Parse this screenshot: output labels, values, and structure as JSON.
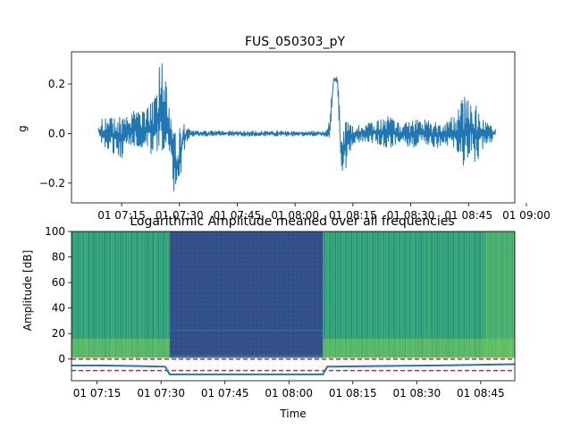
{
  "chart_data": [
    {
      "type": "line",
      "title": "FUS_050303_pY",
      "xlabel": "",
      "ylabel": "g",
      "xlim": [
        "01 07:02",
        "01 08:57"
      ],
      "ylim": [
        -0.28,
        0.33
      ],
      "yticks": [
        -0.2,
        0.0,
        0.2
      ],
      "ytick_labels": [
        "−0.2",
        "0.0",
        "0.2"
      ],
      "xticks": [
        "01 07:15",
        "01 07:30",
        "01 07:45",
        "01 08:00",
        "01 08:15",
        "01 08:30",
        "01 08:45",
        "01 09:00"
      ],
      "xtick_labels": [
        "01 07:15",
        "01 07:30",
        "01 07:45",
        "01 08:00",
        "01 08:15",
        "01 08:30",
        "01 08:45",
        "01 09:00"
      ],
      "series_color": "#1f77b4",
      "envelope": [
        {
          "t": "01 07:09",
          "min": 0.0,
          "max": 0.03
        },
        {
          "t": "01 07:10",
          "min": -0.05,
          "max": 0.06
        },
        {
          "t": "01 07:12",
          "min": -0.07,
          "max": 0.06
        },
        {
          "t": "01 07:15",
          "min": -0.1,
          "max": 0.07
        },
        {
          "t": "01 07:18",
          "min": -0.05,
          "max": 0.09
        },
        {
          "t": "01 07:21",
          "min": -0.06,
          "max": 0.09
        },
        {
          "t": "01 07:24",
          "min": -0.1,
          "max": 0.15
        },
        {
          "t": "01 07:25",
          "min": -0.05,
          "max": 0.3
        },
        {
          "t": "01 07:26",
          "min": -0.08,
          "max": 0.28
        },
        {
          "t": "01 07:27",
          "min": -0.06,
          "max": 0.16
        },
        {
          "t": "01 07:28",
          "min": -0.17,
          "max": 0.03
        },
        {
          "t": "01 07:29",
          "min": -0.28,
          "max": 0.0
        },
        {
          "t": "01 07:30",
          "min": -0.26,
          "max": 0.02
        },
        {
          "t": "01 07:31",
          "min": -0.08,
          "max": 0.04
        },
        {
          "t": "01 07:32",
          "min": -0.03,
          "max": 0.03
        },
        {
          "t": "01 07:33",
          "min": -0.01,
          "max": 0.01
        },
        {
          "t": "01 08:08",
          "min": -0.01,
          "max": 0.01
        },
        {
          "t": "01 08:09",
          "min": -0.02,
          "max": 0.07
        },
        {
          "t": "01 08:10",
          "min": 0.2,
          "max": 0.24
        },
        {
          "t": "01 08:11",
          "min": 0.19,
          "max": 0.23
        },
        {
          "t": "01 08:12",
          "min": -0.25,
          "max": 0.01
        },
        {
          "t": "01 08:13",
          "min": -0.15,
          "max": 0.05
        },
        {
          "t": "01 08:15",
          "min": -0.04,
          "max": 0.03
        },
        {
          "t": "01 08:18",
          "min": -0.03,
          "max": 0.04
        },
        {
          "t": "01 08:21",
          "min": -0.04,
          "max": 0.05
        },
        {
          "t": "01 08:24",
          "min": -0.06,
          "max": 0.07
        },
        {
          "t": "01 08:27",
          "min": -0.04,
          "max": 0.04
        },
        {
          "t": "01 08:30",
          "min": -0.06,
          "max": 0.05
        },
        {
          "t": "01 08:33",
          "min": -0.05,
          "max": 0.06
        },
        {
          "t": "01 08:36",
          "min": -0.06,
          "max": 0.05
        },
        {
          "t": "01 08:39",
          "min": -0.05,
          "max": 0.04
        },
        {
          "t": "01 08:42",
          "min": -0.09,
          "max": 0.09
        },
        {
          "t": "01 08:44",
          "min": -0.16,
          "max": 0.16
        },
        {
          "t": "01 08:45",
          "min": -0.08,
          "max": 0.13
        },
        {
          "t": "01 08:47",
          "min": -0.12,
          "max": 0.11
        },
        {
          "t": "01 08:49",
          "min": -0.05,
          "max": 0.05
        },
        {
          "t": "01 08:51",
          "min": -0.04,
          "max": 0.03
        },
        {
          "t": "01 08:52",
          "min": 0.0,
          "max": 0.02
        }
      ]
    },
    {
      "type": "heatmap",
      "title": "Logarithmic Amplitude meaned over all frequencies",
      "xlabel": "Time",
      "ylabel": "Amplitude [dB]",
      "xlim": [
        "01 07:09",
        "01 08:53"
      ],
      "ylim": [
        -17,
        100
      ],
      "yticks": [
        0,
        20,
        40,
        60,
        80,
        100
      ],
      "ytick_labels": [
        "0",
        "20",
        "40",
        "60",
        "80",
        "100"
      ],
      "xticks": [
        "01 07:15",
        "01 07:30",
        "01 07:45",
        "01 08:00",
        "01 08:15",
        "01 08:30",
        "01 08:45"
      ],
      "xtick_labels": [
        "01 07:15",
        "01 07:30",
        "01 07:45",
        "01 08:00",
        "01 08:15",
        "01 08:30",
        "01 08:45"
      ],
      "heatmap_range": [
        1,
        100
      ],
      "quiet_interval": [
        "01 07:32",
        "01 08:08"
      ],
      "colors": {
        "active": "#2fa07e",
        "active_high": "#7ccd5a",
        "quiet": "#35528a",
        "line": "#1f77b4",
        "ref": "#d62728"
      },
      "mean_amplitude": [
        {
          "t": "01 07:09",
          "y": -5
        },
        {
          "t": "01 07:15",
          "y": -5
        },
        {
          "t": "01 07:25",
          "y": -5.5
        },
        {
          "t": "01 07:31",
          "y": -6
        },
        {
          "t": "01 07:32",
          "y": -12
        },
        {
          "t": "01 08:08",
          "y": -12
        },
        {
          "t": "01 08:09",
          "y": -6
        },
        {
          "t": "01 08:20",
          "y": -5.5
        },
        {
          "t": "01 08:35",
          "y": -5
        },
        {
          "t": "01 08:45",
          "y": -4.5
        },
        {
          "t": "01 08:53",
          "y": -4
        }
      ],
      "reference_lines": [
        0,
        -9
      ]
    }
  ]
}
